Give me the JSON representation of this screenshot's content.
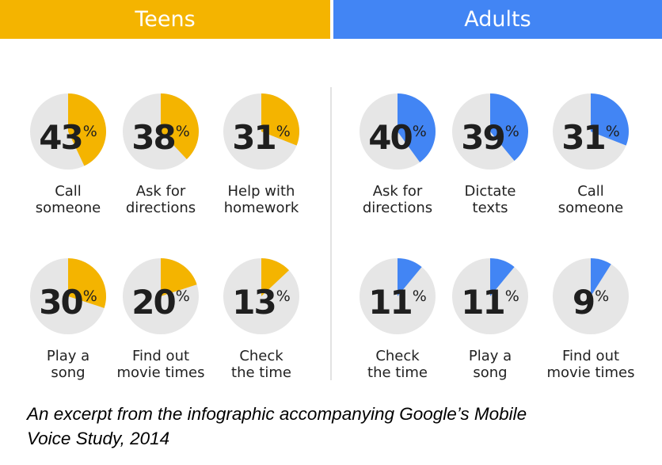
{
  "headers": {
    "teens": "Teens",
    "adults": "Adults"
  },
  "colors": {
    "teens": "#f4b400",
    "adults": "#4285f4",
    "pie_background": "#e6e6e6"
  },
  "percent_symbol": "%",
  "chart_data": [
    {
      "type": "pie",
      "title": "Teens",
      "categories": [
        "Call someone",
        "Ask for directions",
        "Help with homework",
        "Play a song",
        "Find out movie times",
        "Check the time"
      ],
      "values": [
        43,
        38,
        31,
        30,
        20,
        13
      ],
      "labels": [
        [
          "Call",
          "someone"
        ],
        [
          "Ask for",
          "directions"
        ],
        [
          "Help with",
          "homework"
        ],
        [
          "Play a",
          "song"
        ],
        [
          "Find out",
          "movie times"
        ],
        [
          "Check",
          "the time"
        ]
      ],
      "unit": "%"
    },
    {
      "type": "pie",
      "title": "Adults",
      "categories": [
        "Ask for directions",
        "Dictate texts",
        "Call someone",
        "Check the time",
        "Play a song",
        "Find out movie times"
      ],
      "values": [
        40,
        39,
        31,
        11,
        11,
        9
      ],
      "labels": [
        [
          "Ask for",
          "directions"
        ],
        [
          "Dictate",
          "texts"
        ],
        [
          "Call",
          "someone"
        ],
        [
          "Check",
          "the time"
        ],
        [
          "Play a",
          "song"
        ],
        [
          "Find out",
          "movie times"
        ]
      ],
      "unit": "%"
    }
  ],
  "caption": {
    "line1": "An excerpt from the infographic accompanying Google’s Mobile",
    "line2": "Voice Study, 2014"
  }
}
